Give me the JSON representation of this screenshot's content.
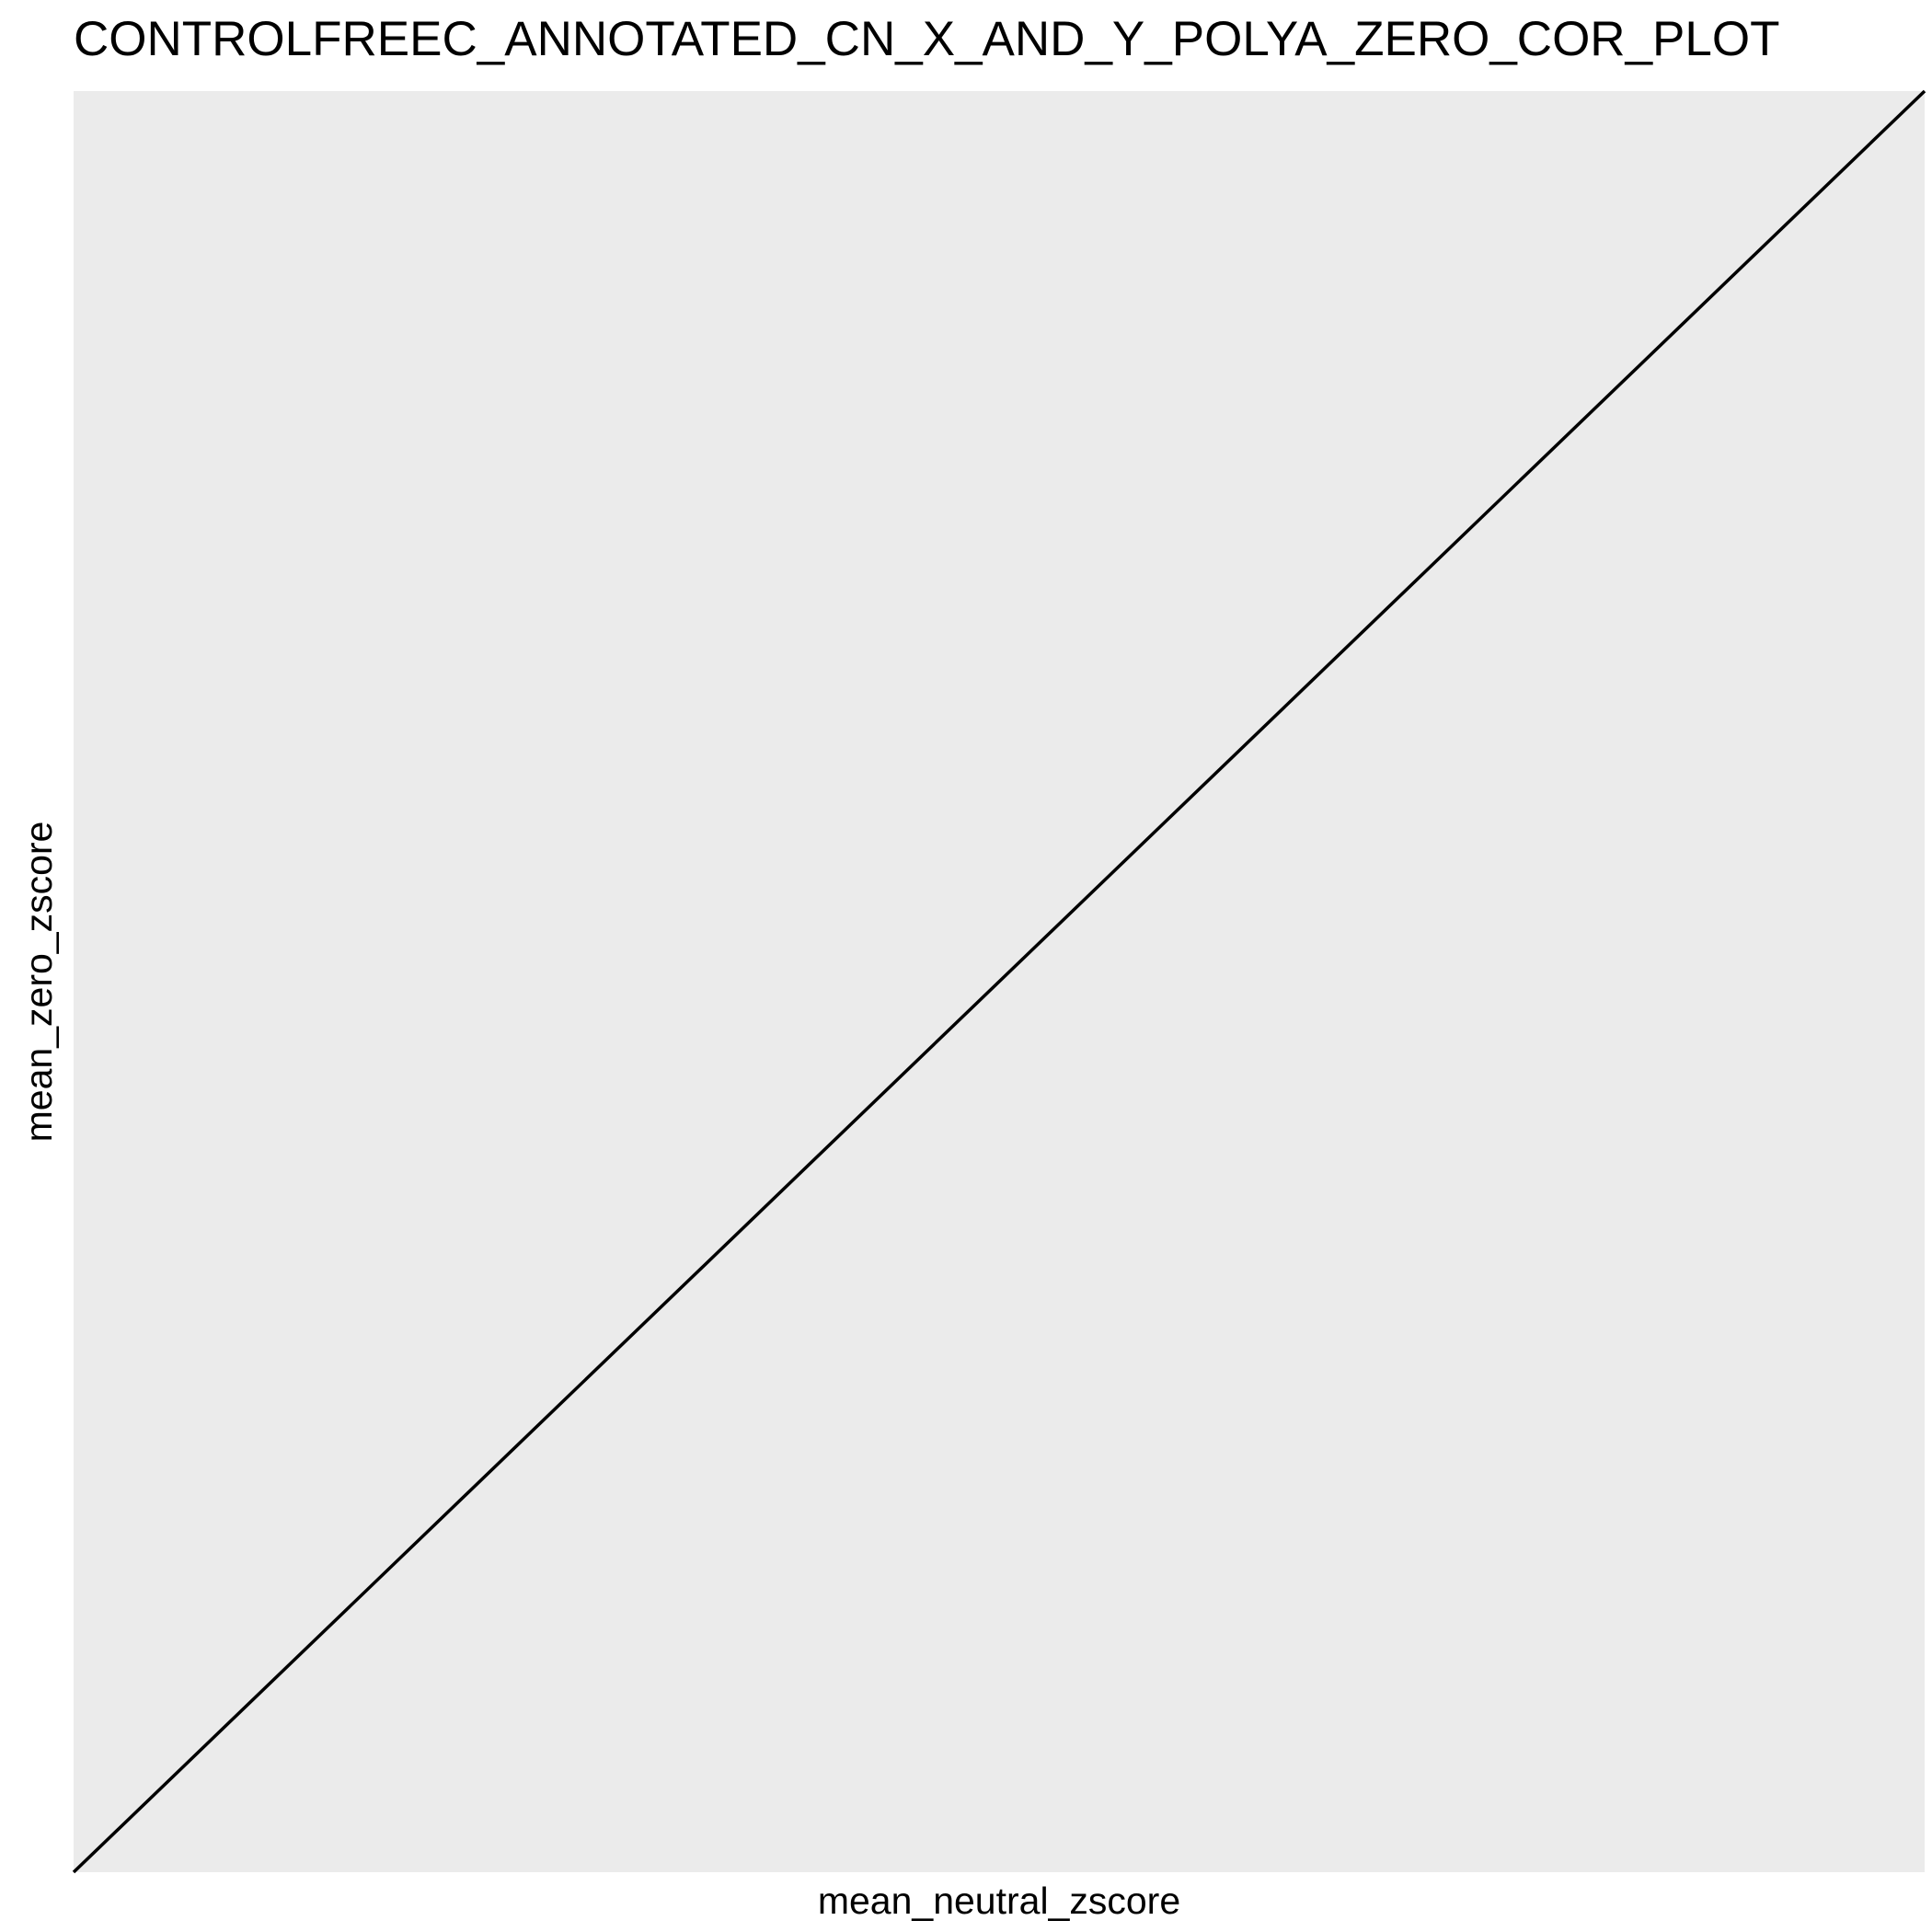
{
  "chart_data": {
    "type": "line",
    "title": "CONTROLFREEC_ANNOTATED_CN_X_AND_Y_POLYA_ZERO_COR_PLOT",
    "xlabel": "mean_neutral_zscore",
    "ylabel": "mean_zero_zscore",
    "grid": false,
    "legend": "none",
    "panel_background": "#EBEBEB",
    "series": [
      {
        "type": "reference_line",
        "slope": 1,
        "intercept": 0,
        "color": "#000000"
      }
    ]
  }
}
